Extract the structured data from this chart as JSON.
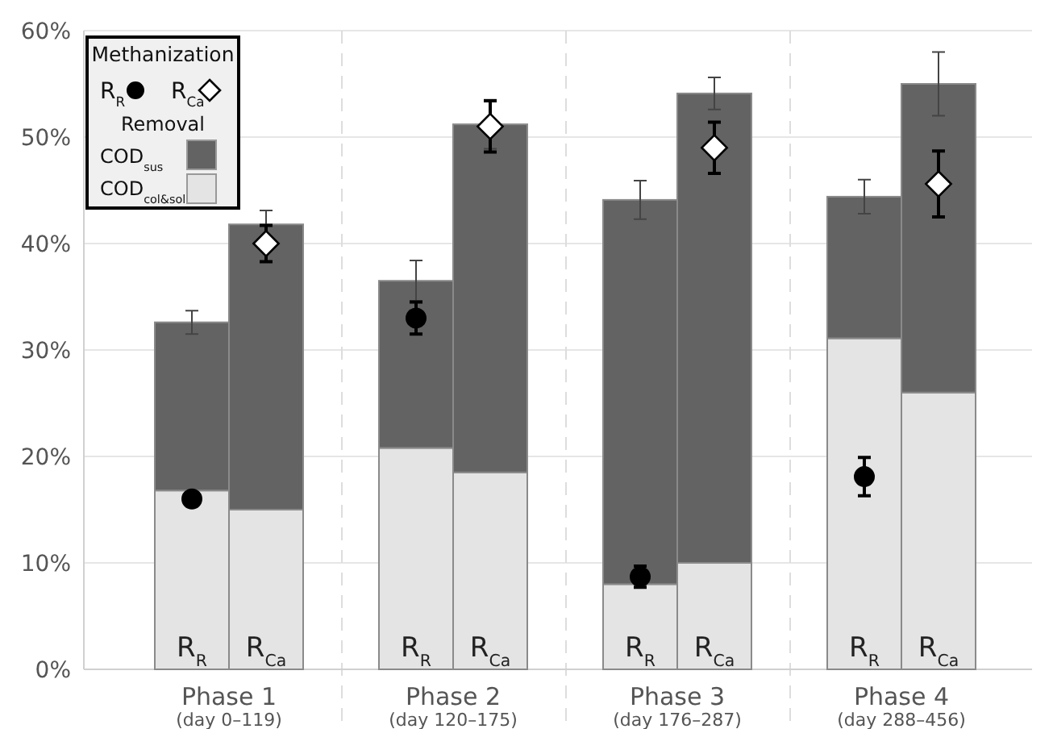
{
  "chart_data": {
    "type": "bar",
    "stacked": true,
    "categories": [
      "R$_{R}$",
      "R$_{Ca}$",
      "R$_{R}$",
      "R$_{Ca}$",
      "R$_{R}$",
      "R$_{Ca}$",
      "R$_{R}$",
      "R$_{Ca}$"
    ],
    "series": [
      {
        "name": "COD$_{col&sol}$",
        "color": "#e4e4e4",
        "values": [
          16.8,
          15.0,
          20.8,
          18.5,
          8.0,
          10.0,
          31.1,
          26.0
        ]
      },
      {
        "name": "COD$_{sus}$",
        "color": "#636363",
        "values": [
          15.8,
          26.8,
          15.7,
          32.7,
          36.1,
          44.1,
          13.3,
          29.0
        ],
        "errors": [
          1.1,
          1.3,
          1.9,
          2.3,
          1.8,
          1.5,
          1.6,
          3.0
        ]
      },
      {
        "name": "R$_{R}$",
        "type": "scatter",
        "marker": "circle",
        "color": "#000000",
        "values": [
          16.0,
          null,
          33.0,
          null,
          8.7,
          null,
          18.1,
          null
        ],
        "errors": [
          null,
          null,
          1.5,
          null,
          1.0,
          null,
          1.8,
          null
        ]
      },
      {
        "name": "R$_{Ca}$",
        "type": "scatter",
        "marker": "diamond",
        "color": "#ffffff",
        "values": [
          null,
          40.0,
          null,
          51.0,
          null,
          49.0,
          null,
          45.6
        ],
        "errors": [
          null,
          1.7,
          null,
          2.4,
          null,
          2.4,
          null,
          3.1
        ]
      }
    ],
    "ylim": [
      0,
      60
    ],
    "yticks": [
      {
        "value": 0,
        "label": "0%"
      },
      {
        "value": 10,
        "label": "10%"
      },
      {
        "value": 20,
        "label": "20%"
      },
      {
        "value": 30,
        "label": "30%"
      },
      {
        "value": 40,
        "label": "40%"
      },
      {
        "value": 50,
        "label": "50%"
      },
      {
        "value": 60,
        "label": "60%"
      }
    ],
    "grid": "y",
    "legend": "top left",
    "legend_title": "Methanization",
    "annotations": [
      "Phase 1",
      "(day 0–119)",
      "Phase 2",
      "(day 120–175)",
      "Phase 3",
      "(day 176–287)",
      "Phase 4",
      "(day 288–456)",
      "Removal"
    ]
  }
}
